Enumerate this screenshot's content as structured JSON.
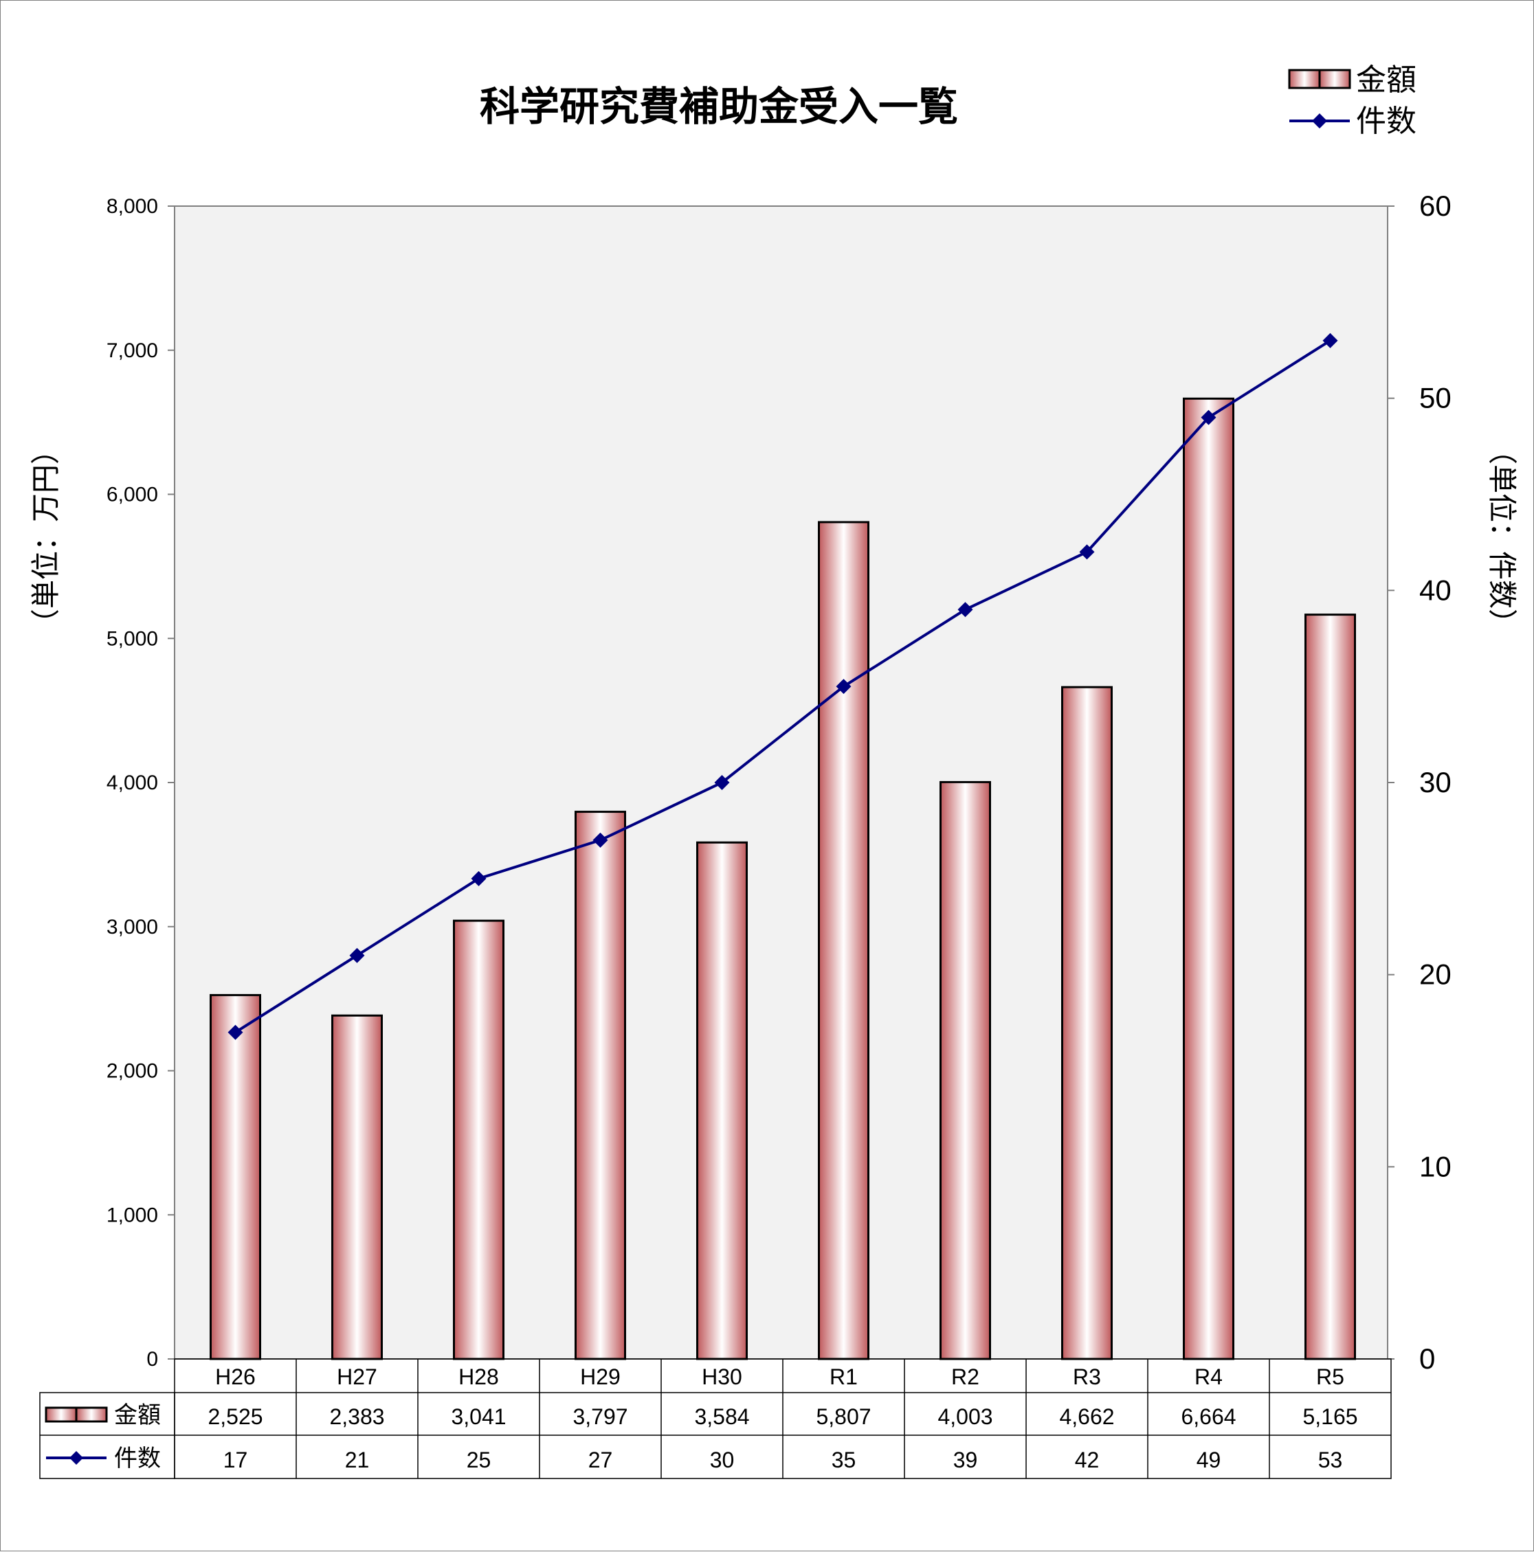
{
  "chart_data": {
    "type": "bar",
    "title": "科学研究費補助金受入一覧",
    "categories": [
      "H26",
      "H27",
      "H28",
      "H29",
      "H30",
      "R1",
      "R2",
      "R3",
      "R4",
      "R5"
    ],
    "series": [
      {
        "name": "金額",
        "type": "bar",
        "axis": "left",
        "values": [
          2525,
          2383,
          3041,
          3797,
          3584,
          5807,
          4003,
          4662,
          6664,
          5165
        ],
        "labels": [
          "2,525",
          "2,383",
          "3,041",
          "3,797",
          "3,584",
          "5,807",
          "4,003",
          "4,662",
          "6,664",
          "5,165"
        ],
        "color": "#c0595c"
      },
      {
        "name": "件数",
        "type": "line",
        "axis": "right",
        "values": [
          17,
          21,
          25,
          27,
          30,
          35,
          39,
          42,
          49,
          53
        ],
        "labels": [
          "17",
          "21",
          "25",
          "27",
          "30",
          "35",
          "39",
          "42",
          "49",
          "53"
        ],
        "color": "#000080"
      }
    ],
    "ylabel_left": "（単位：万円）",
    "ylabel_right": "（単位：件数）",
    "ylim_left": [
      0,
      8000
    ],
    "ylim_right": [
      0,
      60
    ],
    "yticks_left": [
      "0",
      "1,000",
      "2,000",
      "3,000",
      "4,000",
      "5,000",
      "6,000",
      "7,000",
      "8,000"
    ],
    "yticks_right": [
      "0",
      "10",
      "20",
      "30",
      "40",
      "50",
      "60"
    ],
    "legend_position": "top-right",
    "grid": false,
    "plot_background": "#f2f2f2",
    "data_table": true
  }
}
